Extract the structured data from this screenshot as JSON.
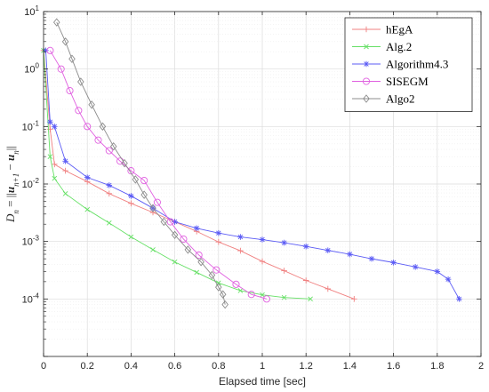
{
  "chart_data": {
    "type": "line",
    "title": "",
    "xlabel": "Elapsed time [sec]",
    "ylabel": "D_n = ||u_{n+1} − u_n||",
    "ylabel_parts": {
      "lhs": "D",
      "lhs_sub": "n",
      "eq": " = ||",
      "u1": "u",
      "u1_sub": "n+1",
      "minus": " − ",
      "u2": "u",
      "u2_sub": "n",
      "end": "||"
    },
    "xlim": [
      0,
      2
    ],
    "ylim": [
      1e-05,
      10
    ],
    "yscale": "log",
    "grid": true,
    "legend_position": "top-right",
    "x_ticks": [
      "0",
      "0.2",
      "0.4",
      "0.6",
      "0.8",
      "1",
      "1.2",
      "1.4",
      "1.6",
      "1.8",
      "2"
    ],
    "y_tick_base": "10",
    "y_tick_exponents": [
      "1",
      "0",
      "-1",
      "-2",
      "-3",
      "-4"
    ],
    "series": [
      {
        "name": "hEgA",
        "color": "#f08080",
        "marker": "plus",
        "points": [
          [
            0.0,
            2.1
          ],
          [
            0.03,
            0.09
          ],
          [
            0.05,
            0.022
          ],
          [
            0.1,
            0.017
          ],
          [
            0.2,
            0.011
          ],
          [
            0.3,
            0.0068
          ],
          [
            0.4,
            0.0046
          ],
          [
            0.5,
            0.0032
          ],
          [
            0.6,
            0.0022
          ],
          [
            0.7,
            0.0015
          ],
          [
            0.8,
            0.00098
          ],
          [
            0.9,
            0.00069
          ],
          [
            1.0,
            0.00045
          ],
          [
            1.1,
            0.00031
          ],
          [
            1.2,
            0.00021
          ],
          [
            1.3,
            0.00015
          ],
          [
            1.42,
            0.0001
          ]
        ]
      },
      {
        "name": "Alg.2",
        "color": "#66e066",
        "marker": "cross",
        "points": [
          [
            0.0,
            2.1
          ],
          [
            0.03,
            0.03
          ],
          [
            0.05,
            0.0125
          ],
          [
            0.1,
            0.0068
          ],
          [
            0.2,
            0.0036
          ],
          [
            0.3,
            0.0021
          ],
          [
            0.4,
            0.0012
          ],
          [
            0.5,
            0.00072
          ],
          [
            0.6,
            0.00044
          ],
          [
            0.7,
            0.00029
          ],
          [
            0.8,
            0.00019
          ],
          [
            0.9,
            0.00014
          ],
          [
            1.0,
            0.000118
          ],
          [
            1.1,
            0.000106
          ],
          [
            1.22,
            0.0001
          ]
        ]
      },
      {
        "name": "Algorithm4.3",
        "color": "#5b5bf5",
        "marker": "star",
        "points": [
          [
            0.01,
            2.1
          ],
          [
            0.03,
            0.12
          ],
          [
            0.05,
            0.1
          ],
          [
            0.1,
            0.025
          ],
          [
            0.2,
            0.013
          ],
          [
            0.3,
            0.0095
          ],
          [
            0.4,
            0.0062
          ],
          [
            0.5,
            0.0038
          ],
          [
            0.6,
            0.0022
          ],
          [
            0.7,
            0.0017
          ],
          [
            0.8,
            0.0014
          ],
          [
            0.9,
            0.0012
          ],
          [
            1.0,
            0.00108
          ],
          [
            1.1,
            0.00095
          ],
          [
            1.2,
            0.00082
          ],
          [
            1.3,
            0.0007
          ],
          [
            1.4,
            0.0006
          ],
          [
            1.5,
            0.0005
          ],
          [
            1.6,
            0.00043
          ],
          [
            1.7,
            0.00036
          ],
          [
            1.8,
            0.0003
          ],
          [
            1.85,
            0.00022
          ],
          [
            1.9,
            0.0001
          ]
        ]
      },
      {
        "name": "SISEGM",
        "color": "#e060e0",
        "marker": "circle",
        "points": [
          [
            0.03,
            2.1
          ],
          [
            0.08,
            1.0
          ],
          [
            0.12,
            0.42
          ],
          [
            0.16,
            0.19
          ],
          [
            0.2,
            0.1
          ],
          [
            0.25,
            0.058
          ],
          [
            0.3,
            0.038
          ],
          [
            0.35,
            0.025
          ],
          [
            0.4,
            0.017
          ],
          [
            0.46,
            0.0115
          ],
          [
            0.52,
            0.0048
          ],
          [
            0.58,
            0.0022
          ],
          [
            0.64,
            0.0011
          ],
          [
            0.71,
            0.00058
          ],
          [
            0.79,
            0.00032
          ],
          [
            0.88,
            0.00018
          ],
          [
            0.95,
            0.00012
          ],
          [
            1.02,
            0.0001
          ]
        ]
      },
      {
        "name": "Algo2",
        "color": "#8c8c8c",
        "marker": "diamond",
        "points": [
          [
            0.06,
            6.5
          ],
          [
            0.1,
            3.0
          ],
          [
            0.13,
            1.5
          ],
          [
            0.17,
            0.6
          ],
          [
            0.22,
            0.24
          ],
          [
            0.27,
            0.1
          ],
          [
            0.32,
            0.045
          ],
          [
            0.37,
            0.023
          ],
          [
            0.42,
            0.012
          ],
          [
            0.46,
            0.0065
          ],
          [
            0.5,
            0.0038
          ],
          [
            0.55,
            0.0022
          ],
          [
            0.6,
            0.0013
          ],
          [
            0.66,
            0.00072
          ],
          [
            0.72,
            0.00044
          ],
          [
            0.77,
            0.00026
          ],
          [
            0.8,
            0.00016
          ],
          [
            0.82,
            0.00012
          ],
          [
            0.83,
            8e-05
          ]
        ]
      }
    ]
  }
}
